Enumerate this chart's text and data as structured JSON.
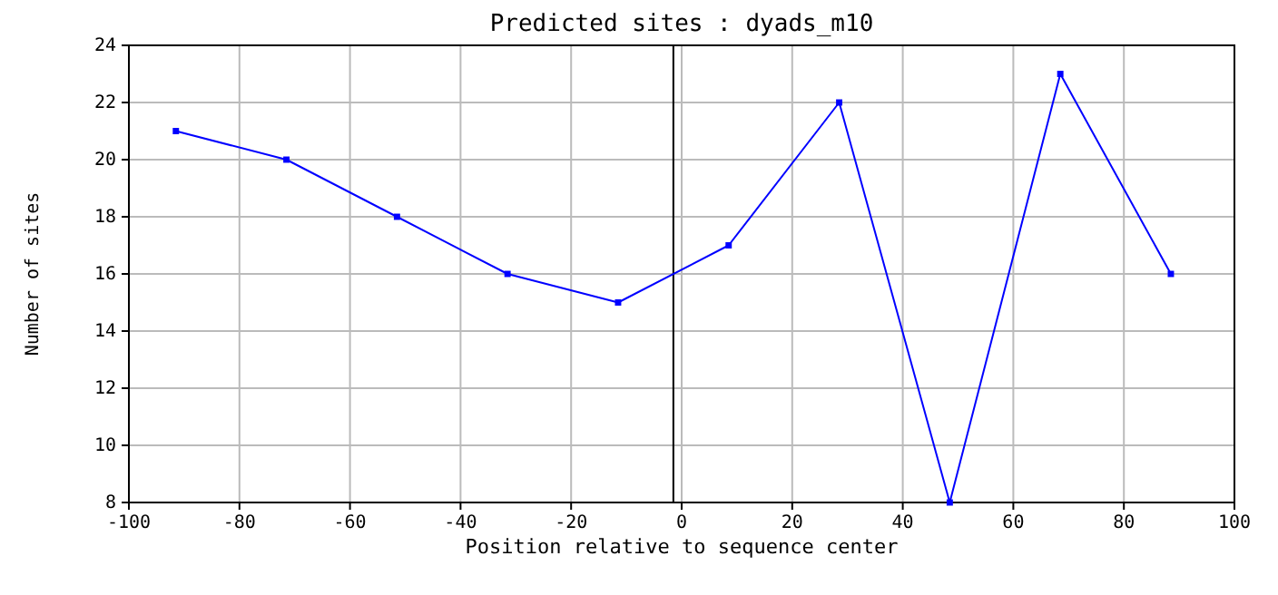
{
  "chart_data": {
    "type": "line",
    "title": "Predicted sites : dyads_m10",
    "xlabel": "Position relative to sequence center",
    "ylabel": "Number of sites",
    "x": [
      -91.5,
      -71.5,
      -51.5,
      -31.5,
      -11.5,
      8.5,
      28.5,
      48.5,
      68.5,
      88.5
    ],
    "series": [
      {
        "color": "#0000ff",
        "values": [
          21,
          20,
          18,
          16,
          15,
          17,
          22,
          8,
          23,
          16
        ]
      }
    ],
    "xlim": [
      -100,
      100
    ],
    "xticks": [
      -100,
      -80,
      -60,
      -40,
      -20,
      0,
      20,
      40,
      60,
      80,
      100
    ],
    "ylim": [
      8,
      24
    ],
    "yticks": [
      8,
      10,
      12,
      14,
      16,
      18,
      20,
      22,
      24
    ],
    "ref_lines": [
      {
        "axis": "x",
        "value": -1.5,
        "color": "#000000"
      }
    ],
    "grid": true,
    "marker": "square",
    "line_style": "solid"
  }
}
